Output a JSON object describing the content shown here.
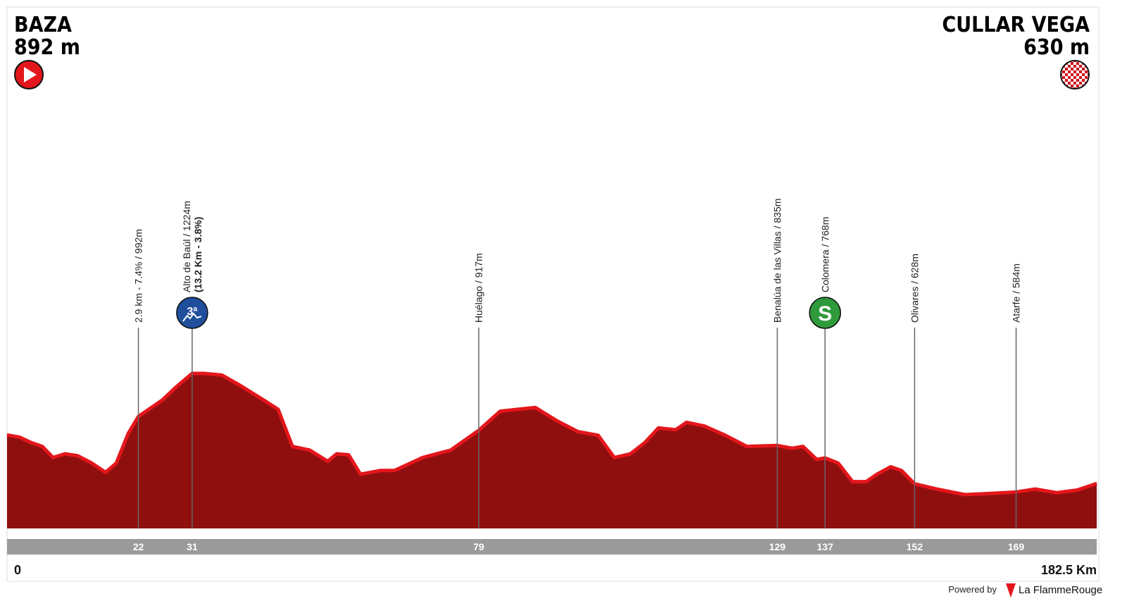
{
  "start": {
    "name": "BAZA",
    "altitude": "892 m"
  },
  "finish": {
    "name": "CULLAR VEGA",
    "altitude": "630 m"
  },
  "chart_data": {
    "type": "area",
    "color": "#8f0f0f",
    "edge_color": "#e3161b",
    "x": [
      0,
      2.1,
      4.1,
      5.9,
      7.7,
      9.7,
      11.8,
      14.2,
      16.5,
      18.3,
      20.3,
      22,
      26,
      28.3,
      31,
      33,
      36,
      39,
      42.5,
      45.4,
      47.8,
      50.7,
      53.7,
      55.2,
      57.2,
      59.2,
      62.5,
      64.9,
      69.6,
      74.3,
      79,
      82.6,
      85.5,
      88.5,
      92,
      95.6,
      99,
      101.7,
      104.4,
      106.8,
      109.1,
      112,
      113.8,
      116.8,
      120.3,
      123.9,
      129,
      131.5,
      133.3,
      135.6,
      137,
      139.2,
      141.6,
      143.9,
      145.7,
      148,
      149.8,
      152,
      155.7,
      160.4,
      164,
      169,
      172.2,
      175.8,
      179.3,
      182.5
    ],
    "values": [
      892,
      880,
      850,
      830,
      770,
      790,
      780,
      740,
      690,
      740,
      900,
      992,
      1080,
      1150,
      1224,
      1224,
      1215,
      1160,
      1090,
      1030,
      830,
      810,
      750,
      790,
      785,
      680,
      700,
      700,
      770,
      810,
      917,
      1020,
      1030,
      1040,
      970,
      910,
      890,
      770,
      790,
      850,
      930,
      920,
      960,
      940,
      890,
      830,
      835,
      820,
      830,
      760,
      768,
      740,
      640,
      640,
      680,
      720,
      700,
      628,
      600,
      570,
      575,
      584,
      600,
      580,
      595,
      630
    ],
    "xlim": [
      0,
      182.5
    ],
    "xticks": [
      0,
      22,
      31,
      79,
      129,
      137,
      152,
      169,
      {
        "value": 182.5,
        "label": "182.5 Km"
      }
    ],
    "markers": [
      {
        "x": 22,
        "label": "2.9 km - 7.4% / 992m"
      },
      {
        "x": 31,
        "label": "Alto de Baúl / 1224m",
        "sublabel": "(13.2 Km - 3.8%)",
        "badge": "3ª",
        "badge_color": "#1f4e9c"
      },
      {
        "x": 79,
        "label": "Huélago / 917m"
      },
      {
        "x": 129,
        "label": "Benalúa de las Villas / 835m"
      },
      {
        "x": 137,
        "label": "Colomera / 768m",
        "badge": "S",
        "badge_color": "#2e9a3b"
      },
      {
        "x": 152,
        "label": "Olivares / 628m"
      },
      {
        "x": 169,
        "label": "Atarfe / 584m"
      }
    ]
  },
  "footer": {
    "powered": "Powered by",
    "brand": "La FlammeRouge"
  }
}
